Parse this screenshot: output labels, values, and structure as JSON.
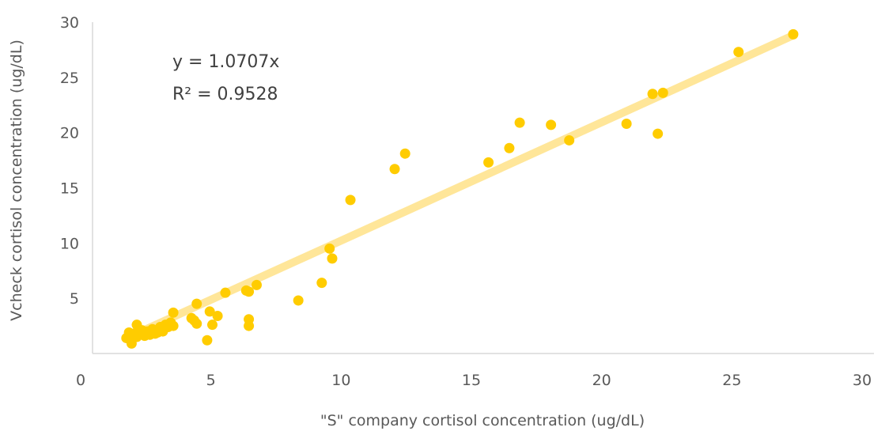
{
  "chart_data": {
    "type": "scatter",
    "xlabel": "\"S\" company cortisol concentration (ug/dL)",
    "ylabel": "Vcheck cortisol concentration (ug/dL)",
    "xlim": [
      0,
      30
    ],
    "ylim": [
      0,
      30
    ],
    "x_ticks": [
      "0",
      "5",
      "10",
      "15",
      "20",
      "25",
      "30"
    ],
    "y_ticks": [
      "5",
      "10",
      "15",
      "20",
      "25",
      "30"
    ],
    "grid": false,
    "legend": "none",
    "trendline": {
      "slope": 1.0707,
      "x_range": [
        1.3,
        26.9
      ],
      "color": "#FFE699"
    },
    "annotations": {
      "equation": "y = 1.0707x",
      "r_squared": "R² = 0.9528"
    },
    "marker_color": "#FFCC00",
    "points": [
      [
        1.3,
        1.4
      ],
      [
        1.4,
        1.9
      ],
      [
        1.4,
        1.6
      ],
      [
        1.5,
        0.9
      ],
      [
        1.5,
        1.3
      ],
      [
        1.6,
        1.8
      ],
      [
        1.7,
        2.6
      ],
      [
        1.7,
        1.5
      ],
      [
        1.8,
        1.7
      ],
      [
        1.9,
        2.1
      ],
      [
        1.9,
        1.8
      ],
      [
        2.0,
        1.6
      ],
      [
        2.1,
        2.0
      ],
      [
        2.2,
        1.7
      ],
      [
        2.3,
        2.2
      ],
      [
        2.4,
        1.8
      ],
      [
        2.5,
        1.9
      ],
      [
        2.6,
        2.4
      ],
      [
        2.7,
        2.0
      ],
      [
        2.8,
        2.6
      ],
      [
        2.9,
        2.4
      ],
      [
        3.0,
        2.8
      ],
      [
        3.1,
        3.7
      ],
      [
        3.1,
        2.5
      ],
      [
        3.8,
        3.2
      ],
      [
        3.9,
        3.0
      ],
      [
        4.0,
        4.5
      ],
      [
        4.0,
        2.7
      ],
      [
        4.4,
        1.2
      ],
      [
        4.5,
        3.8
      ],
      [
        4.6,
        2.6
      ],
      [
        4.8,
        3.4
      ],
      [
        5.1,
        5.5
      ],
      [
        5.9,
        5.7
      ],
      [
        6.0,
        5.6
      ],
      [
        6.0,
        3.1
      ],
      [
        6.0,
        2.5
      ],
      [
        6.3,
        6.2
      ],
      [
        7.9,
        4.8
      ],
      [
        8.8,
        6.4
      ],
      [
        9.1,
        9.5
      ],
      [
        9.2,
        8.6
      ],
      [
        9.9,
        13.9
      ],
      [
        11.6,
        16.7
      ],
      [
        12.0,
        18.1
      ],
      [
        15.2,
        17.3
      ],
      [
        16.0,
        18.6
      ],
      [
        16.4,
        20.9
      ],
      [
        17.6,
        20.7
      ],
      [
        18.3,
        19.3
      ],
      [
        20.5,
        20.8
      ],
      [
        21.5,
        23.5
      ],
      [
        21.7,
        19.9
      ],
      [
        21.9,
        23.6
      ],
      [
        24.8,
        27.3
      ],
      [
        26.9,
        28.9
      ]
    ]
  }
}
